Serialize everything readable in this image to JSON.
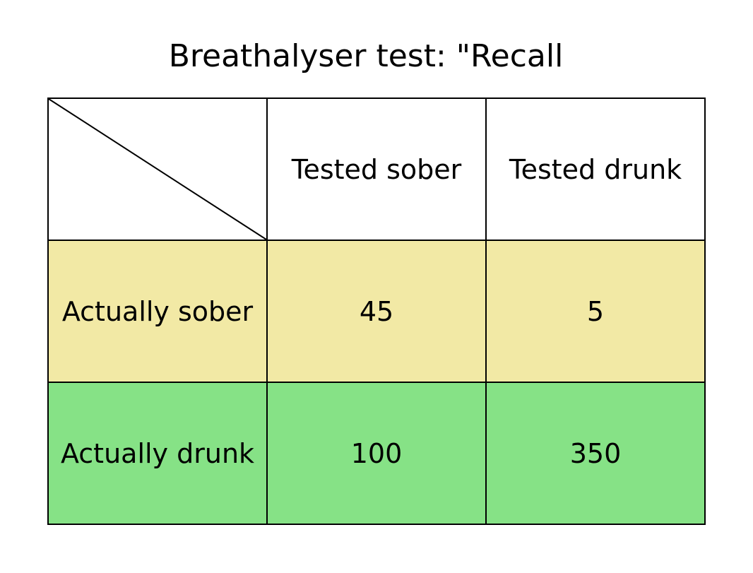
{
  "title": "Breathalyser test: \"Recall",
  "colors": {
    "row_sober": "#f2e9a5",
    "row_drunk": "#86e286",
    "header": "#ffffff",
    "border": "#000000"
  },
  "table": {
    "column_headers": [
      "Tested sober",
      "Tested drunk"
    ],
    "rows": [
      {
        "label": "Actually sober",
        "values": [
          "45",
          "5"
        ]
      },
      {
        "label": "Actually drunk",
        "values": [
          "100",
          "350"
        ]
      }
    ]
  }
}
